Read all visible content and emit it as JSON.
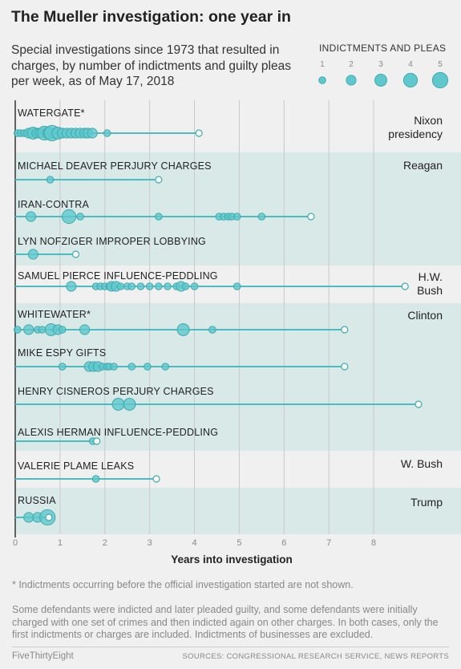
{
  "title": "The Mueller investigation: one year in",
  "subtitle": "Special investigations since 1973 that resulted in charges, by number of indictments and guilty pleas per week, as of May 17, 2018",
  "legend": {
    "title": "INDICTMENTS AND PLEAS",
    "sizes": [
      1,
      2,
      3,
      4,
      5
    ]
  },
  "colors": {
    "dot_fill": "#5ec8cc",
    "dot_stroke": "#3fa9ae",
    "line": "#4cbcc1",
    "band": "#d9e9e8",
    "background": "#f0f0f0",
    "grid": "#c8c8c8"
  },
  "chart_data": {
    "type": "scatter",
    "xlabel": "Years into investigation",
    "xlim": [
      0,
      8
    ],
    "xticks": [
      0,
      1,
      2,
      3,
      4,
      5,
      6,
      7,
      8
    ],
    "presidencies": [
      {
        "label": "Nixon presidency",
        "rows": [
          0,
          0
        ],
        "banded": false
      },
      {
        "label": "Reagan",
        "rows": [
          1,
          3
        ],
        "banded": true
      },
      {
        "label": "H.W. Bush",
        "rows": [
          4,
          4
        ],
        "banded": false
      },
      {
        "label": "Clinton",
        "rows": [
          5,
          8
        ],
        "banded": true
      },
      {
        "label": "W. Bush",
        "rows": [
          9,
          9
        ],
        "banded": false
      },
      {
        "label": "Trump",
        "rows": [
          10,
          10
        ],
        "banded": true
      }
    ],
    "investigations": [
      {
        "name": "WATERGATE*",
        "end": 4.1,
        "points": [
          [
            0.05,
            1
          ],
          [
            0.12,
            1
          ],
          [
            0.2,
            1
          ],
          [
            0.3,
            2
          ],
          [
            0.4,
            3
          ],
          [
            0.48,
            2
          ],
          [
            0.55,
            2
          ],
          [
            0.65,
            4
          ],
          [
            0.75,
            3
          ],
          [
            0.82,
            5
          ],
          [
            0.95,
            3
          ],
          [
            1.05,
            2
          ],
          [
            1.15,
            2
          ],
          [
            1.25,
            2
          ],
          [
            1.35,
            2
          ],
          [
            1.45,
            2
          ],
          [
            1.55,
            2
          ],
          [
            1.62,
            2
          ],
          [
            1.72,
            2
          ],
          [
            2.05,
            1
          ]
        ]
      },
      {
        "name": "MICHAEL DEAVER PERJURY CHARGES",
        "end": 3.2,
        "points": [
          [
            0.78,
            1
          ]
        ]
      },
      {
        "name": "IRAN-CONTRA",
        "end": 6.6,
        "points": [
          [
            0.35,
            2
          ],
          [
            1.2,
            4
          ],
          [
            1.45,
            1
          ],
          [
            3.2,
            1
          ],
          [
            4.55,
            1
          ],
          [
            4.65,
            1
          ],
          [
            4.75,
            1
          ],
          [
            4.83,
            1
          ],
          [
            4.95,
            1
          ],
          [
            5.5,
            1
          ]
        ]
      },
      {
        "name": "LYN NOFZIGER IMPROPER LOBBYING",
        "end": 1.35,
        "points": [
          [
            0.4,
            2
          ]
        ]
      },
      {
        "name": "SAMUEL PIERCE INFLUENCE-PEDDLING",
        "end": 8.7,
        "points": [
          [
            1.25,
            2
          ],
          [
            1.8,
            1
          ],
          [
            1.9,
            1
          ],
          [
            2.0,
            1
          ],
          [
            2.1,
            1
          ],
          [
            2.15,
            2
          ],
          [
            2.25,
            2
          ],
          [
            2.35,
            1
          ],
          [
            2.5,
            1
          ],
          [
            2.6,
            1
          ],
          [
            2.8,
            1
          ],
          [
            3.0,
            1
          ],
          [
            3.2,
            1
          ],
          [
            3.4,
            1
          ],
          [
            3.6,
            1
          ],
          [
            3.7,
            2
          ],
          [
            3.8,
            1
          ],
          [
            4.0,
            1
          ],
          [
            4.95,
            1
          ]
        ]
      },
      {
        "name": "WHITEWATER*",
        "end": 7.35,
        "points": [
          [
            0.05,
            1
          ],
          [
            0.3,
            2
          ],
          [
            0.5,
            1
          ],
          [
            0.6,
            1
          ],
          [
            0.8,
            3
          ],
          [
            0.95,
            2
          ],
          [
            1.05,
            1
          ],
          [
            1.55,
            2
          ],
          [
            3.75,
            3
          ],
          [
            4.4,
            1
          ]
        ]
      },
      {
        "name": "MIKE ESPY GIFTS",
        "end": 7.35,
        "points": [
          [
            1.05,
            1
          ],
          [
            1.65,
            2
          ],
          [
            1.75,
            2
          ],
          [
            1.85,
            2
          ],
          [
            1.95,
            1
          ],
          [
            2.05,
            1
          ],
          [
            2.1,
            1
          ],
          [
            2.2,
            1
          ],
          [
            2.6,
            1
          ],
          [
            2.95,
            1
          ],
          [
            3.35,
            1
          ]
        ]
      },
      {
        "name": "HENRY CISNEROS PERJURY CHARGES",
        "end": 9.0,
        "points": [
          [
            2.3,
            3
          ],
          [
            2.55,
            3
          ]
        ]
      },
      {
        "name": "ALEXIS HERMAN INFLUENCE-PEDDLING",
        "end": 1.82,
        "points": [
          [
            1.73,
            1
          ]
        ]
      },
      {
        "name": "VALERIE PLAME LEAKS",
        "end": 3.15,
        "points": [
          [
            1.8,
            1
          ]
        ]
      },
      {
        "name": "RUSSIA",
        "end": 0.75,
        "points": [
          [
            0.3,
            2
          ],
          [
            0.5,
            2
          ],
          [
            0.72,
            5
          ]
        ]
      }
    ]
  },
  "footnote": "* Indictments occurring before the official investigation started are not shown.",
  "note": "Some defendants were indicted and later pleaded guilty, and some defendants were initially charged with one set of crimes and then indicted again on other charges. In both cases, only the first indictments or charges are included. Indictments of businesses are excluded.",
  "brand": "FiveThirtyEight",
  "sources": "SOURCES: CONGRESSIONAL RESEARCH SERVICE, NEWS REPORTS"
}
